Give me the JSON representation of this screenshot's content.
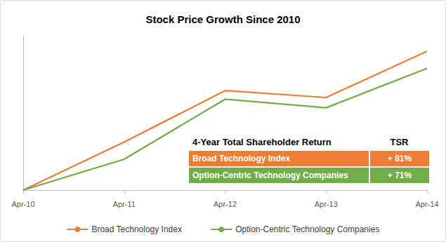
{
  "chart_data": {
    "type": "line",
    "title": "Stock Price Growth Since 2010",
    "categories": [
      "Apr-10",
      "Apr-11",
      "Apr-12",
      "Apr-13",
      "Apr-14"
    ],
    "series": [
      {
        "name": "Broad Technology Index",
        "color": "#ed7d31",
        "values": [
          0,
          28,
          58,
          54,
          81
        ]
      },
      {
        "name": "Option-Centric Technology Companies",
        "color": "#70ad47",
        "values": [
          0,
          18,
          53,
          48,
          71
        ]
      }
    ],
    "ylim": [
      0,
      90
    ],
    "grid": false,
    "legend": "bottom",
    "tick_labels": "x",
    "marker": "none",
    "line_style": "solid",
    "table": {
      "title": "4-Year Total Shareholder Return",
      "header": "TSR",
      "rows": [
        {
          "label": "Broad Technology Index",
          "value": "+ 81%"
        },
        {
          "label": "Option-Centric Technology Companies",
          "value": "+ 71%"
        }
      ]
    }
  }
}
